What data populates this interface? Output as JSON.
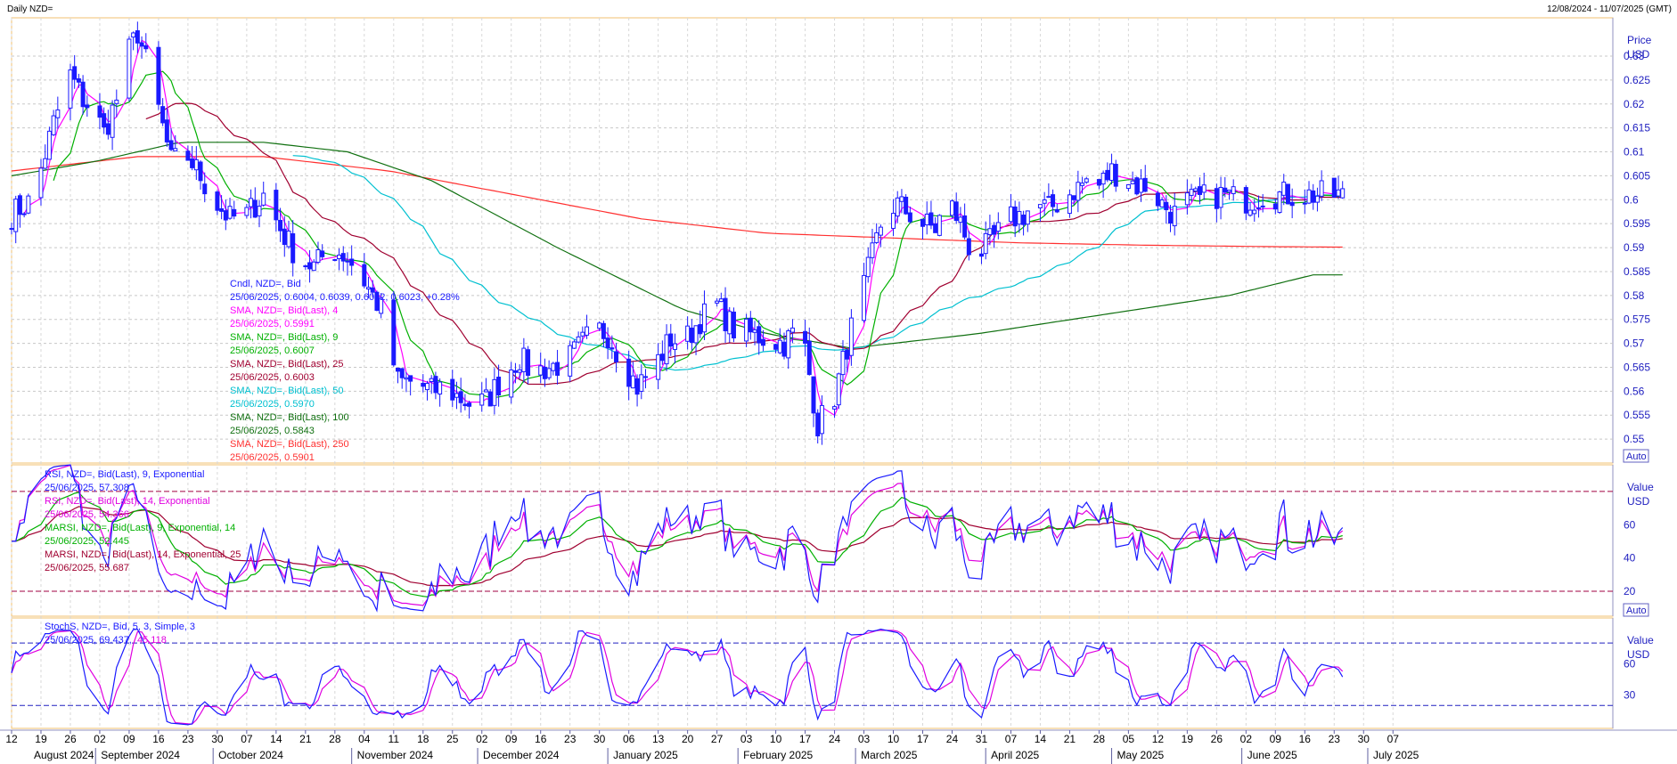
{
  "header": {
    "title": "Daily NZD=",
    "date_range": "12/08/2024 - 11/07/2025 (GMT)"
  },
  "colors": {
    "candle": "#1a1aff",
    "sma4": "#ff00ff",
    "sma9": "#00b000",
    "sma25": "#a00030",
    "sma50": "#00c0d0",
    "sma100": "#107010",
    "sma250": "#ff3030",
    "rsi9": "#1a1aff",
    "rsi14": "#e000e0",
    "marsi9": "#00b000",
    "marsi14": "#a00030",
    "stoch_k": "#1a1aff",
    "stoch_d": "#e000e0",
    "grid": "#c8c8c8",
    "frame": "#f0c070"
  },
  "chart_data": [
    {
      "type": "candlestick",
      "panel": "price",
      "y_title": "Price",
      "y_unit": "USD",
      "ylim": [
        0.545,
        0.638
      ],
      "yticks": [
        0.55,
        0.555,
        0.56,
        0.565,
        0.57,
        0.575,
        0.58,
        0.585,
        0.59,
        0.595,
        0.6,
        0.605,
        0.61,
        0.615,
        0.62,
        0.625,
        0.63
      ],
      "auto_label": "Auto",
      "grid": true,
      "legend_placement": "left-middle",
      "legend": [
        {
          "label": "Cndl, NZD=, Bid",
          "value": "25/06/2025, 0.6004, 0.6039, 0.6002, 0.6023, +0.28%",
          "color_key": "candle",
          "value_tail": ""
        },
        {
          "label": "SMA, NZD=, Bid(Last), 4",
          "value": "25/06/2025, 0.5991",
          "color_key": "sma4"
        },
        {
          "label": "SMA, NZD=, Bid(Last), 9",
          "value": "25/06/2025, 0.6007",
          "color_key": "sma9"
        },
        {
          "label": "SMA, NZD=, Bid(Last), 25",
          "value": "25/06/2025, 0.6003",
          "color_key": "sma25"
        },
        {
          "label": "SMA, NZD=, Bid(Last), 50",
          "value": "25/06/2025, 0.5970",
          "color_key": "sma50"
        },
        {
          "label": "SMA, NZD=, Bid(Last), 100",
          "value": "25/06/2025, 0.5843",
          "color_key": "sma100"
        },
        {
          "label": "SMA, NZD=, Bid(Last), 250",
          "value": "25/06/2025, 0.5901",
          "color_key": "sma250"
        }
      ],
      "close_path_days": [
        0,
        5,
        10,
        14,
        17,
        20,
        22,
        25,
        28,
        30,
        33,
        38,
        42,
        45,
        48,
        52,
        56,
        60,
        64,
        68,
        72,
        76,
        80,
        84,
        88,
        92,
        96,
        100,
        103,
        106,
        110,
        113,
        117,
        121,
        124,
        128,
        132,
        136,
        139,
        142,
        145,
        149,
        153,
        157,
        160,
        164,
        168,
        172,
        176,
        180,
        184,
        188,
        192,
        196,
        200,
        204,
        208,
        211,
        214,
        217,
        220,
        223,
        226,
        229,
        232,
        235,
        238,
        241,
        244,
        247,
        250,
        253,
        256,
        259,
        262,
        265,
        268,
        271,
        274,
        277,
        280,
        283,
        286,
        289,
        292,
        295,
        298,
        301,
        304,
        307,
        310,
        313,
        317
      ],
      "close_path_values": [
        0.597,
        0.6,
        0.616,
        0.626,
        0.621,
        0.618,
        0.614,
        0.621,
        0.631,
        0.635,
        0.626,
        0.608,
        0.609,
        0.605,
        0.6,
        0.596,
        0.597,
        0.601,
        0.594,
        0.588,
        0.586,
        0.59,
        0.588,
        0.583,
        0.577,
        0.562,
        0.562,
        0.56,
        0.561,
        0.559,
        0.557,
        0.558,
        0.563,
        0.567,
        0.564,
        0.565,
        0.566,
        0.57,
        0.573,
        0.572,
        0.567,
        0.561,
        0.565,
        0.571,
        0.57,
        0.575,
        0.578,
        0.573,
        0.572,
        0.571,
        0.57,
        0.574,
        0.553,
        0.559,
        0.573,
        0.585,
        0.598,
        0.599,
        0.597,
        0.595,
        0.594,
        0.6,
        0.595,
        0.588,
        0.59,
        0.593,
        0.596,
        0.597,
        0.599,
        0.598,
        0.6,
        0.602,
        0.604,
        0.603,
        0.606,
        0.605,
        0.603,
        0.603,
        0.599,
        0.597,
        0.5995,
        0.6,
        0.601,
        0.601,
        0.6,
        0.6,
        0.601,
        0.601,
        0.601,
        0.601,
        0.601,
        0.601,
        0.601
      ],
      "sma100_path_days": [
        0,
        20,
        40,
        60,
        80,
        100,
        130,
        160,
        180,
        200,
        210,
        230,
        260,
        290,
        310
      ],
      "sma100_path_values": [
        0.605,
        0.608,
        0.612,
        0.612,
        0.61,
        0.604,
        0.59,
        0.577,
        0.572,
        0.569,
        0.57,
        0.572,
        0.576,
        0.58,
        0.5843
      ],
      "sma250_path_days": [
        0,
        30,
        60,
        90,
        120,
        150,
        180,
        210,
        240,
        270,
        300,
        317
      ],
      "sma250_path_values": [
        0.606,
        0.609,
        0.609,
        0.606,
        0.601,
        0.596,
        0.593,
        0.592,
        0.591,
        0.5905,
        0.5902,
        0.5901
      ]
    },
    {
      "type": "line",
      "panel": "rsi",
      "y_title": "Value",
      "y_unit": "USD",
      "ylim": [
        5,
        96
      ],
      "yticks": [
        20,
        40,
        60
      ],
      "reference_lines": [
        20,
        80
      ],
      "auto_label": "Auto",
      "legend": [
        {
          "label": "RSI, NZD=, Bid(Last), 9, Exponential",
          "value": "25/06/2025, 57.308",
          "color_key": "rsi9"
        },
        {
          "label": "RSI, NZD=, Bid(Last), 14, Exponential",
          "value": "25/06/2025, 54.366",
          "color_key": "rsi14"
        },
        {
          "label": "MARSI, NZD=, Bid(Last), 9, Exponential, 14",
          "value": "25/06/2025, 52.445",
          "color_key": "marsi9"
        },
        {
          "label": "MARSI, NZD=, Bid(Last), 14, Exponential, 25",
          "value": "25/06/2025, 55.687",
          "color_key": "marsi14"
        }
      ]
    },
    {
      "type": "line",
      "panel": "stochastic",
      "y_title": "Value",
      "y_unit": "USD",
      "ylim": [
        -2,
        104
      ],
      "yticks": [
        30,
        60
      ],
      "reference_lines": [
        20,
        80
      ],
      "legend": [
        {
          "label": "StochS, NZD=, Bid,  5, 3, Simple, 3",
          "value": "25/06/2025, 69.437,",
          "value2": "45.118",
          "color_key": "stoch_k"
        }
      ]
    }
  ],
  "x_axis": {
    "day_labels": [
      "12",
      "19",
      "26",
      "02",
      "09",
      "16",
      "23",
      "30",
      "07",
      "14",
      "21",
      "28",
      "04",
      "11",
      "18",
      "25",
      "02",
      "09",
      "16",
      "23",
      "30",
      "06",
      "13",
      "20",
      "27",
      "03",
      "10",
      "17",
      "24",
      "03",
      "10",
      "17",
      "24",
      "31",
      "07",
      "14",
      "21",
      "28",
      "05",
      "12",
      "19",
      "26",
      "02",
      "09",
      "16",
      "23",
      "30",
      "07"
    ],
    "months": [
      "August 2024",
      "September 2024",
      "October 2024",
      "November 2024",
      "December 2024",
      "January 2025",
      "February 2025",
      "March 2025",
      "April 2025",
      "May 2025",
      "June 2025",
      "July 2025"
    ]
  }
}
